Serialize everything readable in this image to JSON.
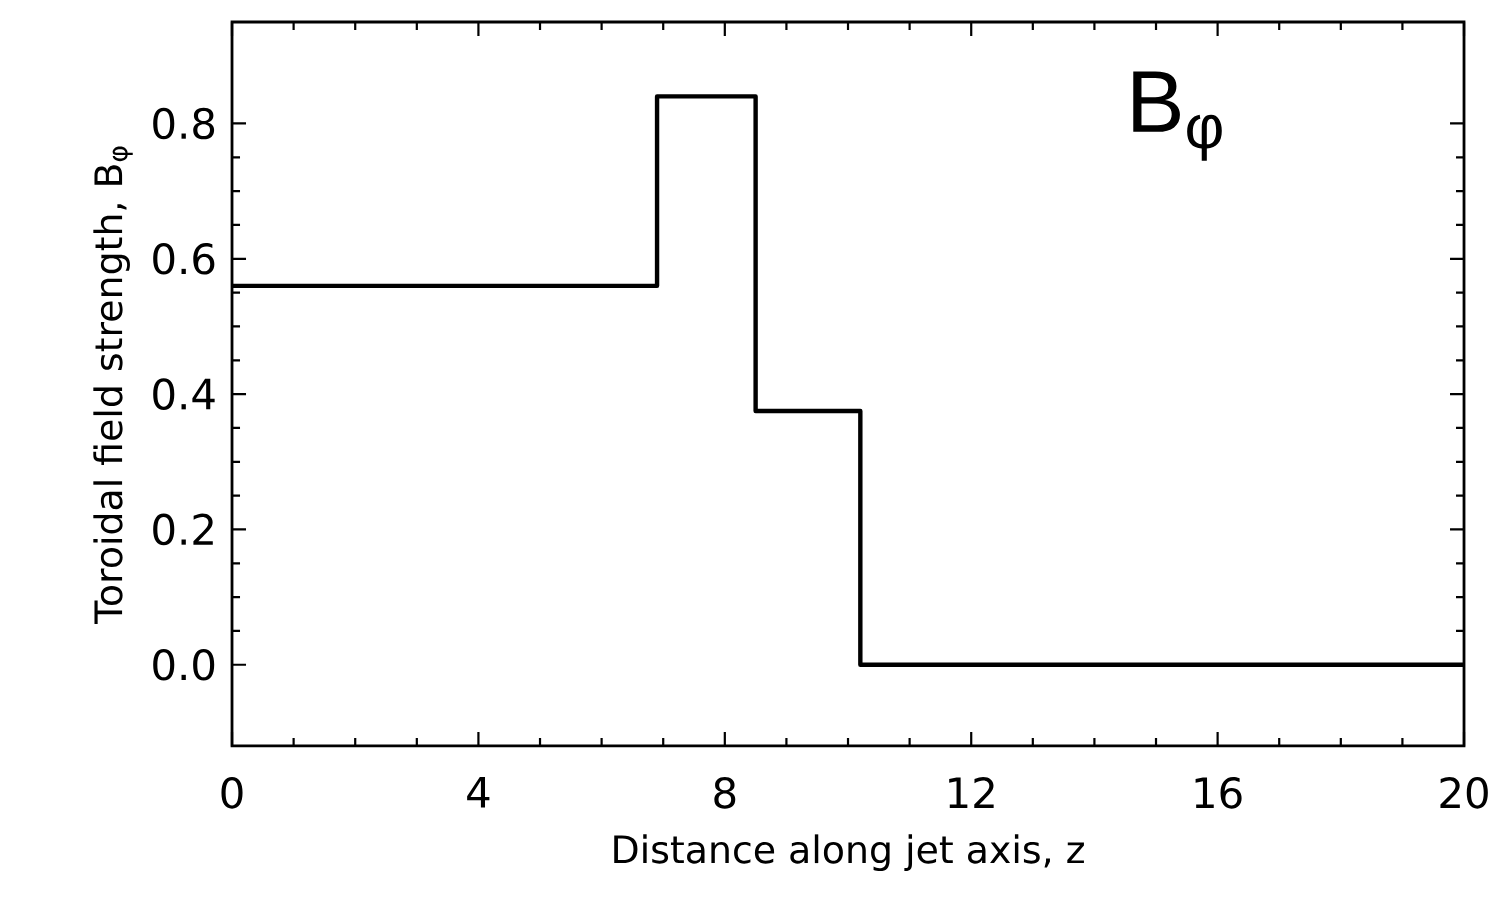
{
  "chart_data": {
    "type": "step",
    "xlabel": "Distance along jet axis, z",
    "ylabel": "Toroidal field strength, B$_{φ}$",
    "x": [
      0,
      6.9,
      8.5,
      10.2,
      20
    ],
    "values": [
      0.56,
      0.84,
      0.375,
      0,
      0
    ],
    "color": "#000000",
    "xlim": [
      0,
      20
    ],
    "xticks": [
      0,
      4,
      8,
      12,
      16,
      20
    ],
    "ylim": [
      -0.12,
      0.95
    ],
    "yticks": [
      {
        "value": 0,
        "label": "0.0"
      },
      {
        "value": 0.2,
        "label": "0.2"
      },
      {
        "value": 0.4,
        "label": "0.4"
      },
      {
        "value": 0.6,
        "label": "0.6"
      },
      {
        "value": 0.8,
        "label": "0.8"
      }
    ],
    "annotations": [
      "B$_{φ}$"
    ]
  }
}
